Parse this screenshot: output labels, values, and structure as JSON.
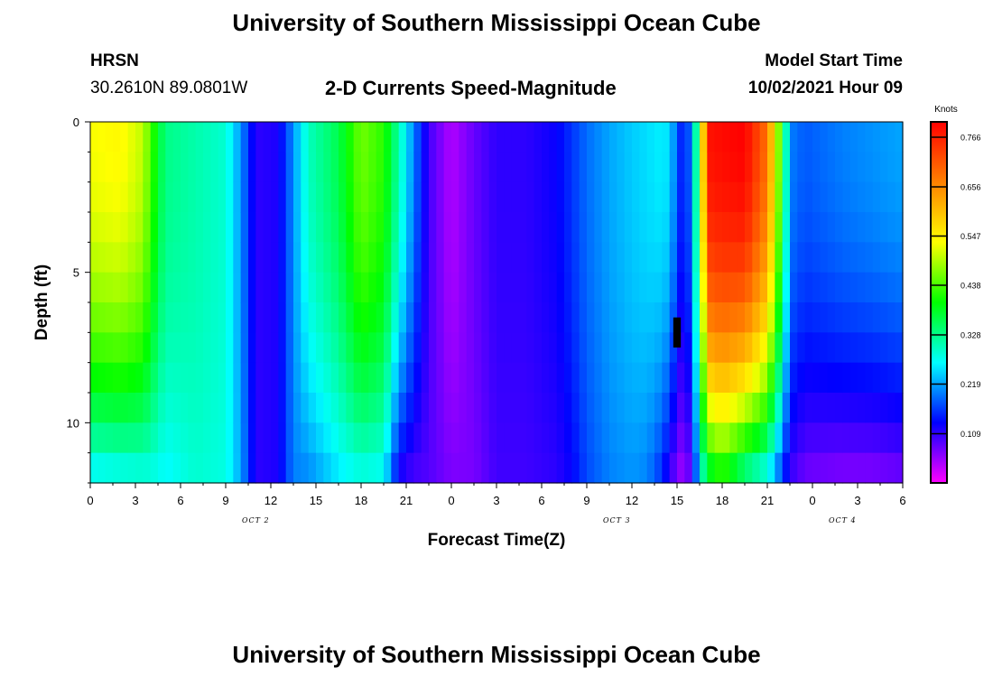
{
  "header": {
    "title": "University of Southern Mississippi Ocean Cube",
    "station": "HRSN",
    "coords": "30.2610N  89.0801W",
    "subtitle": "2-D Currents Speed-Magnitude",
    "model_label": "Model Start Time",
    "model_time": "10/02/2021 Hour 09"
  },
  "footer": {
    "title": "University of Southern Mississippi Ocean Cube"
  },
  "colors": {
    "scale": [
      "#ff00ff",
      "#0000ff",
      "#00ffff",
      "#00ff00",
      "#ffff00",
      "#ff8000",
      "#ff0000"
    ]
  },
  "chart_data": {
    "type": "heatmap",
    "title": "2-D Currents Speed-Magnitude",
    "xlabel": "Forecast Time(Z)",
    "ylabel": "Depth (ft)",
    "x_ticks": [
      "0",
      "3",
      "6",
      "9",
      "12",
      "15",
      "18",
      "21",
      "0",
      "3",
      "6",
      "9",
      "12",
      "15",
      "18",
      "21",
      "0",
      "3",
      "6"
    ],
    "date_labels": [
      {
        "text": "OCT 2",
        "after_tick": 11
      },
      {
        "text": "OCT 3",
        "after_tick": 35
      },
      {
        "text": "OCT 4",
        "after_tick": 50
      }
    ],
    "y_ticks": [
      0,
      5,
      10
    ],
    "ylim": [
      0,
      12
    ],
    "xlim_hours": [
      0,
      54
    ],
    "colorbar": {
      "units": "Knots",
      "min": 0.0,
      "max": 0.8,
      "tick_values": [
        "0.766",
        "0.656",
        "0.547",
        "0.438",
        "0.328",
        "0.219",
        "0.109"
      ]
    },
    "depth_rows": [
      0.5,
      1.5,
      2.5,
      3.5,
      4.5,
      5.5,
      6.5,
      7.5,
      8.5,
      9.5,
      10.5,
      11.5
    ],
    "speed_profiles": [
      {
        "hour": 0,
        "surface": 0.53,
        "bottom": 0.25
      },
      {
        "hour": 2,
        "surface": 0.54,
        "bottom": 0.26
      },
      {
        "hour": 3.5,
        "surface": 0.5,
        "bottom": 0.27
      },
      {
        "hour": 4.5,
        "surface": 0.38,
        "bottom": 0.27
      },
      {
        "hour": 5,
        "surface": 0.33,
        "bottom": 0.26
      },
      {
        "hour": 7,
        "surface": 0.31,
        "bottom": 0.29
      },
      {
        "hour": 9,
        "surface": 0.29,
        "bottom": 0.28
      },
      {
        "hour": 10,
        "surface": 0.21,
        "bottom": 0.22
      },
      {
        "hour": 11,
        "surface": 0.11,
        "bottom": 0.11
      },
      {
        "hour": 12.5,
        "surface": 0.12,
        "bottom": 0.12
      },
      {
        "hour": 13.5,
        "surface": 0.21,
        "bottom": 0.2
      },
      {
        "hour": 14.5,
        "surface": 0.3,
        "bottom": 0.2
      },
      {
        "hour": 16.5,
        "surface": 0.36,
        "bottom": 0.25
      },
      {
        "hour": 18,
        "surface": 0.46,
        "bottom": 0.27
      },
      {
        "hour": 19.5,
        "surface": 0.42,
        "bottom": 0.26
      },
      {
        "hour": 20.5,
        "surface": 0.31,
        "bottom": 0.11
      },
      {
        "hour": 21.5,
        "surface": 0.2,
        "bottom": 0.09
      },
      {
        "hour": 22.5,
        "surface": 0.1,
        "bottom": 0.09
      },
      {
        "hour": 24,
        "surface": 0.04,
        "bottom": 0.07
      },
      {
        "hour": 25.5,
        "surface": 0.08,
        "bottom": 0.07
      },
      {
        "hour": 27,
        "surface": 0.11,
        "bottom": 0.1
      },
      {
        "hour": 29,
        "surface": 0.11,
        "bottom": 0.1
      },
      {
        "hour": 31,
        "surface": 0.13,
        "bottom": 0.11
      },
      {
        "hour": 32,
        "surface": 0.16,
        "bottom": 0.13
      },
      {
        "hour": 33,
        "surface": 0.19,
        "bottom": 0.17
      },
      {
        "hour": 34.5,
        "surface": 0.22,
        "bottom": 0.2
      },
      {
        "hour": 36,
        "surface": 0.24,
        "bottom": 0.21
      },
      {
        "hour": 37,
        "surface": 0.25,
        "bottom": 0.2
      },
      {
        "hour": 38,
        "surface": 0.26,
        "bottom": 0.15
      },
      {
        "hour": 38.5,
        "surface": 0.25,
        "bottom": 0.1
      },
      {
        "hour": 39,
        "surface": 0.18,
        "bottom": 0.06
      },
      {
        "hour": 39.5,
        "surface": 0.13,
        "bottom": 0.04
      },
      {
        "hour": 40,
        "surface": 0.22,
        "bottom": 0.1
      },
      {
        "hour": 40.5,
        "surface": 0.4,
        "bottom": 0.25
      },
      {
        "hour": 41,
        "surface": 0.78,
        "bottom": 0.34
      },
      {
        "hour": 42,
        "surface": 0.79,
        "bottom": 0.39
      },
      {
        "hour": 43.5,
        "surface": 0.8,
        "bottom": 0.3
      },
      {
        "hour": 45,
        "surface": 0.68,
        "bottom": 0.25
      },
      {
        "hour": 46,
        "surface": 0.4,
        "bottom": 0.15
      },
      {
        "hour": 46.5,
        "surface": 0.2,
        "bottom": 0.1
      },
      {
        "hour": 47.5,
        "surface": 0.18,
        "bottom": 0.07
      },
      {
        "hour": 50,
        "surface": 0.2,
        "bottom": 0.06
      },
      {
        "hour": 52,
        "surface": 0.21,
        "bottom": 0.06
      },
      {
        "hour": 54,
        "surface": 0.22,
        "bottom": 0.07
      }
    ],
    "missing_cell": {
      "hour": 39,
      "depth_from": 6.5,
      "depth_to": 7.5
    }
  }
}
